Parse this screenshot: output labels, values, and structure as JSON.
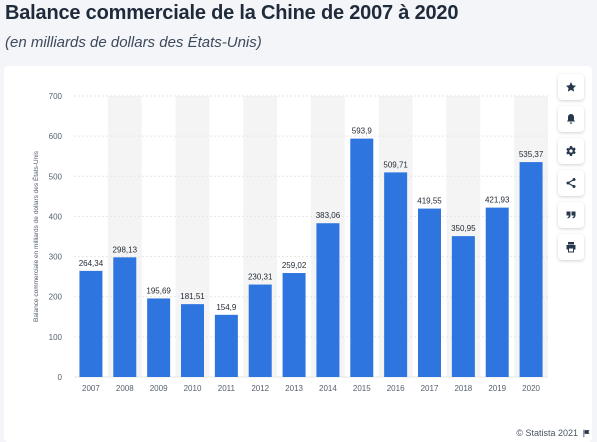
{
  "header": {
    "title": "Balance commerciale de la Chine de 2007 à 2020",
    "subtitle": "(en milliards de dollars des États-Unis)"
  },
  "footer": {
    "copyright": "© Statista 2021"
  },
  "toolbar": {
    "icons": [
      "star-icon",
      "bell-icon",
      "gear-icon",
      "share-icon",
      "quote-icon",
      "print-icon"
    ]
  },
  "colors": {
    "bar": "#2f75df",
    "stripe": "#f4f4f4",
    "grid": "#e6e6e6"
  },
  "chart_data": {
    "type": "bar",
    "categories": [
      "2007",
      "2008",
      "2009",
      "2010",
      "2011",
      "2012",
      "2013",
      "2014",
      "2015",
      "2016",
      "2017",
      "2018",
      "2019",
      "2020"
    ],
    "values": [
      264.34,
      298.13,
      195.69,
      181.51,
      154.9,
      230.31,
      259.02,
      383.06,
      593.9,
      509.71,
      419.55,
      350.95,
      421.93,
      535.37
    ],
    "value_labels": [
      "264,34",
      "298,13",
      "195,69",
      "181,51",
      "154,9",
      "230,31",
      "259,02",
      "383,06",
      "593,9",
      "509,71",
      "419,55",
      "350,95",
      "421,93",
      "535,37"
    ],
    "y_ticks": [
      0,
      100,
      200,
      300,
      400,
      500,
      600,
      700
    ],
    "ylim": [
      0,
      700
    ],
    "ylabel": "Balance commerciale en milliards de dollars des États-Unis",
    "xlabel": "",
    "grid": true,
    "legend": false
  }
}
